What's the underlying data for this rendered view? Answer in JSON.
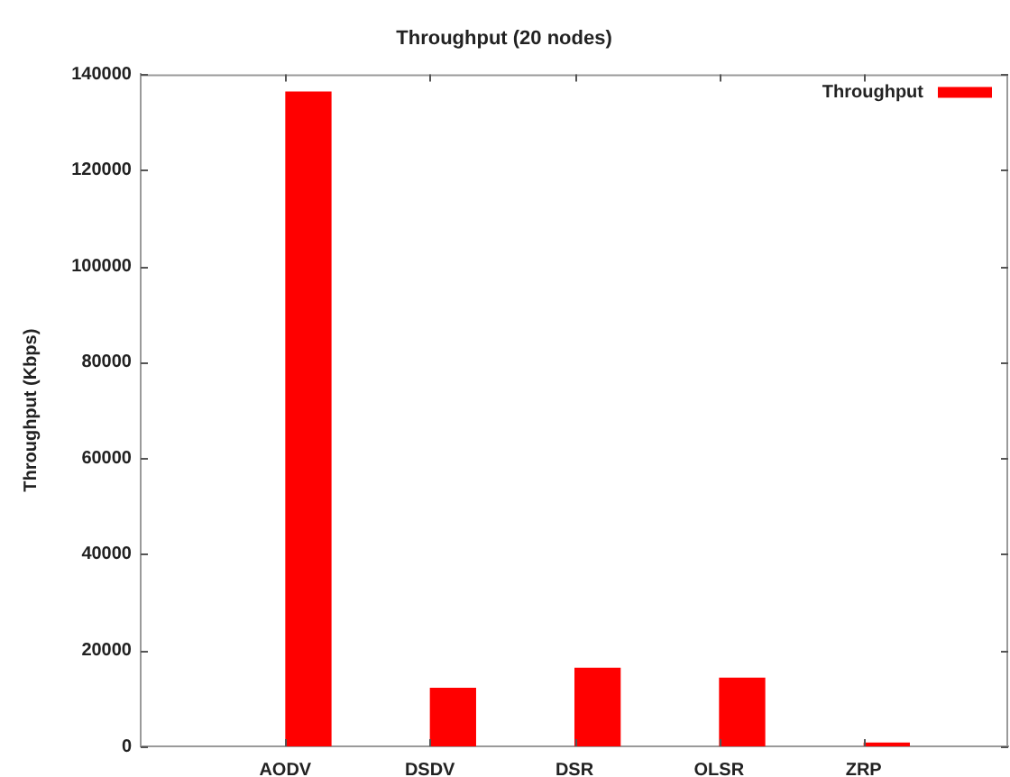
{
  "chart_data": {
    "type": "bar",
    "title": "Throughput (20 nodes)",
    "ylabel": "Throughput (Kbps)",
    "categories": [
      "AODV",
      "DSDV",
      "DSR",
      "OLSR",
      "ZRP"
    ],
    "series": [
      {
        "name": "Throughput",
        "color": "#ff0000",
        "values": [
          136400,
          12200,
          16400,
          14300,
          800
        ]
      }
    ],
    "ylim": [
      0,
      140000
    ],
    "yticks": [
      0,
      20000,
      40000,
      60000,
      80000,
      100000,
      120000,
      140000
    ],
    "grid": false,
    "legend": "top right"
  }
}
